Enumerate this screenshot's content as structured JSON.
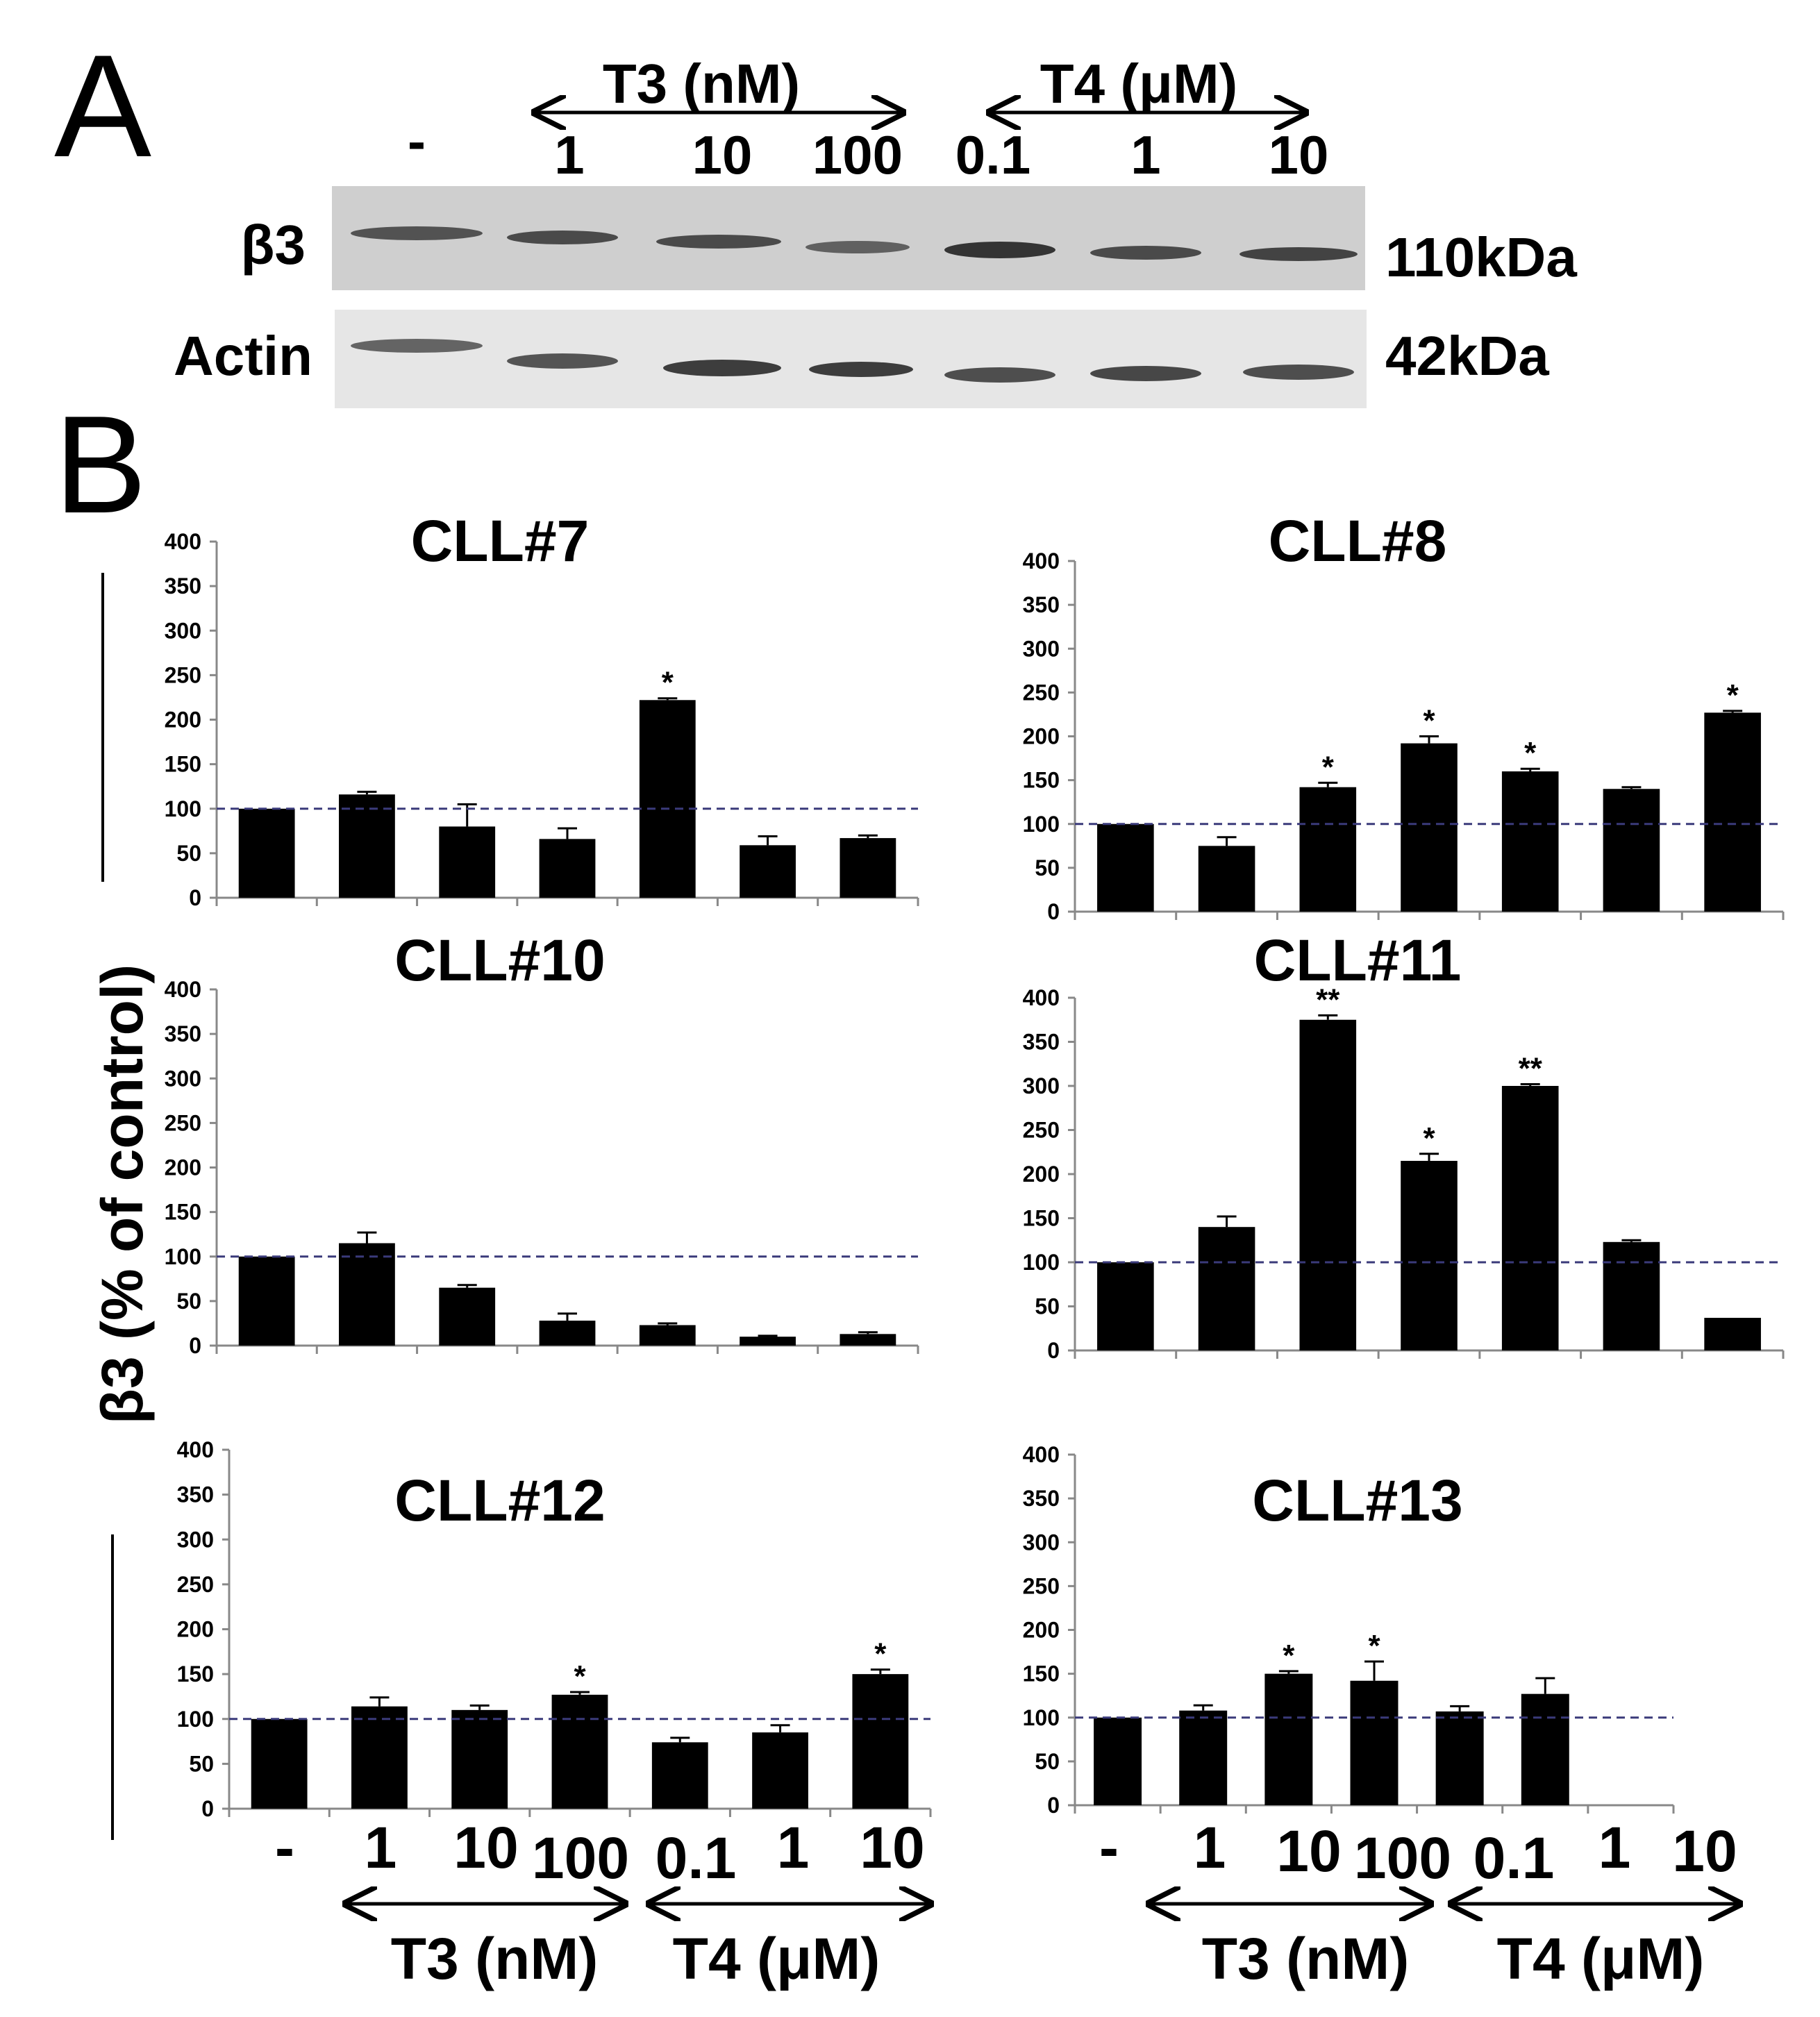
{
  "panel_a": {
    "label": "A",
    "lane_labels": [
      "-",
      "1",
      "10",
      "100",
      "0.1",
      "1",
      "10"
    ],
    "t3_header": "T3 (nM)",
    "t4_header": "T4 (μM)",
    "blots": [
      {
        "name": "β3",
        "mw": "110kDa"
      },
      {
        "name": "Actin",
        "mw": "42kDa"
      }
    ]
  },
  "panel_b": {
    "label": "B",
    "y_axis_label": "β3 (% of control)",
    "x_category_labels": [
      "-",
      "1",
      "10",
      "100",
      "0.1",
      "1",
      "10"
    ],
    "t3_group_label": "T3 (nM)",
    "t4_group_label": "T4 (μM)"
  },
  "chart_data": [
    {
      "type": "bar",
      "title": "CLL#7",
      "categories": [
        "-",
        "1",
        "10",
        "100",
        "0.1",
        "1",
        "10"
      ],
      "values": [
        100,
        116,
        80,
        66,
        222,
        59,
        67
      ],
      "errors": [
        0,
        3,
        25,
        12,
        2,
        10,
        3
      ],
      "significance": [
        "",
        "",
        "",
        "",
        "*",
        "",
        ""
      ],
      "ylim": [
        0,
        400
      ],
      "yticks": [
        0,
        50,
        100,
        150,
        200,
        250,
        300,
        350,
        400
      ],
      "reference_line": 100
    },
    {
      "type": "bar",
      "title": "CLL#8",
      "categories": [
        "-",
        "1",
        "10",
        "100",
        "0.1",
        "1",
        "10"
      ],
      "values": [
        100,
        75,
        142,
        192,
        160,
        140,
        227
      ],
      "errors": [
        0,
        10,
        5,
        8,
        3,
        2,
        2
      ],
      "significance": [
        "",
        "",
        "*",
        "*",
        "*",
        "",
        "*"
      ],
      "ylim": [
        0,
        400
      ],
      "yticks": [
        0,
        50,
        100,
        150,
        200,
        250,
        300,
        350,
        400
      ],
      "reference_line": 100
    },
    {
      "type": "bar",
      "title": "CLL#10",
      "categories": [
        "-",
        "1",
        "10",
        "100",
        "0.1",
        "1",
        "10"
      ],
      "values": [
        100,
        115,
        65,
        28,
        23,
        10,
        13
      ],
      "errors": [
        0,
        12,
        3,
        8,
        2,
        1,
        2
      ],
      "significance": [
        "",
        "",
        "",
        "",
        "",
        "",
        ""
      ],
      "ylim": [
        0,
        400
      ],
      "yticks": [
        0,
        50,
        100,
        150,
        200,
        250,
        300,
        350,
        400
      ],
      "reference_line": 100
    },
    {
      "type": "bar",
      "title": "CLL#11",
      "categories": [
        "-",
        "1",
        "10",
        "100",
        "0.1",
        "1",
        "10"
      ],
      "values": [
        100,
        140,
        375,
        215,
        300,
        123,
        37
      ],
      "errors": [
        0,
        12,
        5,
        8,
        2,
        2,
        0
      ],
      "significance": [
        "",
        "",
        "**",
        "*",
        "**",
        "",
        ""
      ],
      "ylim": [
        0,
        400
      ],
      "yticks": [
        0,
        50,
        100,
        150,
        200,
        250,
        300,
        350,
        400
      ],
      "reference_line": 100
    },
    {
      "type": "bar",
      "title": "CLL#12",
      "categories": [
        "-",
        "1",
        "10",
        "100",
        "0.1",
        "1",
        "10"
      ],
      "values": [
        100,
        114,
        110,
        127,
        74,
        85,
        150
      ],
      "errors": [
        0,
        10,
        5,
        3,
        5,
        8,
        5
      ],
      "significance": [
        "",
        "",
        "",
        "*",
        "",
        "",
        "*"
      ],
      "ylim": [
        0,
        400
      ],
      "yticks": [
        0,
        50,
        100,
        150,
        200,
        250,
        300,
        350,
        400
      ],
      "reference_line": 100
    },
    {
      "type": "bar",
      "title": "CLL#13",
      "categories": [
        "-",
        "1",
        "10",
        "100",
        "0.1",
        "1",
        "10"
      ],
      "values": [
        100,
        108,
        150,
        142,
        107,
        127,
        null
      ],
      "errors": [
        0,
        6,
        3,
        22,
        6,
        18,
        null
      ],
      "significance": [
        "",
        "",
        "*",
        "*",
        "",
        "",
        ""
      ],
      "ylim": [
        0,
        400
      ],
      "yticks": [
        0,
        50,
        100,
        150,
        200,
        250,
        300,
        350,
        400
      ],
      "reference_line": 100
    }
  ],
  "colors": {
    "bar": "#000000",
    "reference_line": "#3a3a7a",
    "axis": "#888888",
    "blot_beta3_bg": "#cfcfcf",
    "blot_actin_bg": "#e6e6e6",
    "band": "#3a3a3a"
  }
}
